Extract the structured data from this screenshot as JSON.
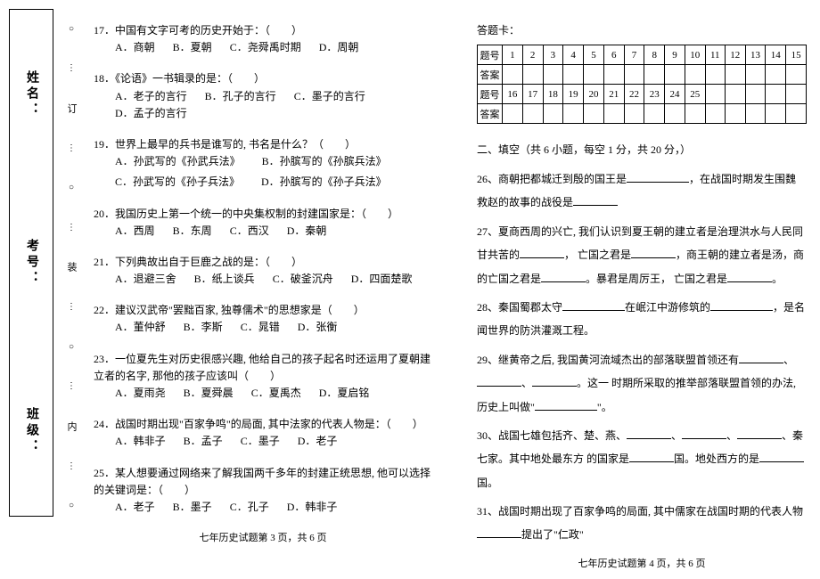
{
  "binding": {
    "labels": [
      "姓名：",
      "考号：",
      "班级："
    ],
    "marks": [
      "订",
      "装",
      "内"
    ]
  },
  "left": {
    "q17": {
      "stem": "17．中国有文字可考的历史开始于：（　　）",
      "a": "A．商朝",
      "b": "B．夏朝",
      "c": "C．尧舜禹时期",
      "d": "D．周朝"
    },
    "q18": {
      "stem": "18．《论语》一书辑录的是：（　　）",
      "a": "A．老子的言行",
      "b": "B．孔子的言行",
      "c": "C．墨子的言行",
      "d": "D．孟子的言行"
    },
    "q19": {
      "stem": "19．世界上最早的兵书是谁写的,  书名是什么？（　　）",
      "a": "A．孙武写的《孙武兵法》",
      "b": "B．孙膑写的《孙膑兵法》",
      "c": "C．孙武写的《孙子兵法》",
      "d": "D．孙膑写的《孙子兵法》"
    },
    "q20": {
      "stem": "20．我国历史上第一个统一的中央集权制的封建国家是：（　　）",
      "a": "A．西周",
      "b": "B．东周",
      "c": "C．西汉",
      "d": "D．秦朝"
    },
    "q21": {
      "stem": "21．下列典故出自于巨鹿之战的是：（　　）",
      "a": "A．退避三舍",
      "b": "B．纸上谈兵",
      "c": "C．破釜沉舟",
      "d": "D．四面楚歌"
    },
    "q22": {
      "stem": "22．建议汉武帝\"罢黜百家,  独尊儒术\"的思想家是（　　）",
      "a": "A．董仲舒",
      "b": "B．李斯",
      "c": "C．晁错",
      "d": "D．张衡"
    },
    "q23": {
      "stem": "23．一位夏先生对历史很感兴趣,  他给自己的孩子起名时还运用了夏朝建立者的名字,  那他的孩子应该叫（　　）",
      "a": "A．夏雨尧",
      "b": "B．夏舜晨",
      "c": "C．夏禹杰",
      "d": "D．夏启铭"
    },
    "q24": {
      "stem": "24．战国时期出现\"百家争鸣\"的局面,  其中法家的代表人物是：（　　）",
      "a": "A．韩非子",
      "b": "B．孟子",
      "c": "C．墨子",
      "d": "D．老子"
    },
    "q25": {
      "stem": "25．某人想要通过网络来了解我国两千多年的封建正统思想,  他可以选择的关键词是：（　　）",
      "a": "A．老子",
      "b": "B．墨子",
      "c": "C．孔子",
      "d": "D．韩非子"
    },
    "footer": "七年历史试题第 3 页，共 6 页"
  },
  "right": {
    "answerTitle": "答题卡：",
    "rowHead1": "题号",
    "rowHead2": "答案",
    "nums1": [
      "1",
      "2",
      "3",
      "4",
      "5",
      "6",
      "7",
      "8",
      "9",
      "10",
      "11",
      "12",
      "13",
      "14",
      "15"
    ],
    "nums2": [
      "16",
      "17",
      "18",
      "19",
      "20",
      "21",
      "22",
      "23",
      "24",
      "25"
    ],
    "section2": "二、填空（共 6 小题，每空 1 分，共 20 分，）",
    "q26a": "26、商朝把都城迁到殷的国王是",
    "q26b": "，在战国时期发生围魏救赵的故事的战役是",
    "q27a": "27、夏商西周的兴亡,  我们认识到夏王朝的建立者是治理洪水与人民同甘共苦的",
    "q27b": "，",
    "q27c": "亡国之君是",
    "q27d": "，商王朝的建立者是汤，商的亡国之君是",
    "q27e": "。暴君是周厉王，",
    "q27f": "亡国之君是",
    "q27g": "。",
    "q28a": "28、秦国蜀郡太守",
    "q28b": "在岷江中游修筑的",
    "q28c": "，是名闻世界的防洪灌溉工程。",
    "q29a": "29、继黄帝之后,  我国黄河流域杰出的部落联盟首领还有",
    "q29b": "、",
    "q29c": "、",
    "q29d": "。这一",
    "q29e": "时期所采取的推举部落联盟首领的办法,  历史上叫做\"",
    "q29f": "\"。",
    "q30a": "30、战国七雄包括齐、楚、燕、",
    "q30b": "、",
    "q30c": "、",
    "q30d": "、秦七家。其中地处最东方",
    "q30e": "的国家是",
    "q30f": "国。地处西方的是",
    "q30g": "国。",
    "q31a": "31、战国时期出现了百家争鸣的局面,  其中儒家在战国时期的代表人物",
    "q31b": "提出了\"仁政\"",
    "footer": "七年历史试题第 4 页，共 6 页"
  }
}
